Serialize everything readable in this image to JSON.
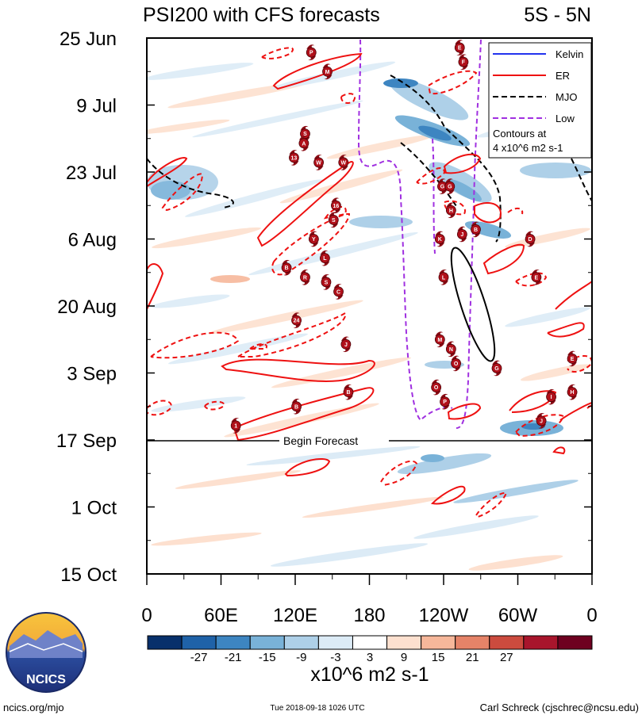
{
  "chart_data": {
    "type": "heatmap",
    "title": "PSI200 with CFS forecasts",
    "region": "5S - 5N",
    "xaxis": {
      "ticks": [
        {
          "lon": 0,
          "label": "0"
        },
        {
          "lon": 60,
          "label": "60E"
        },
        {
          "lon": 120,
          "label": "120E"
        },
        {
          "lon": 180,
          "label": "180"
        },
        {
          "lon": 240,
          "label": "120W"
        },
        {
          "lon": 300,
          "label": "60W"
        },
        {
          "lon": 360,
          "label": "0"
        }
      ],
      "range": [
        0,
        360
      ]
    },
    "yaxis": {
      "ticks": [
        {
          "day": 0,
          "label": "25 Jun"
        },
        {
          "day": 14,
          "label": "9 Jul"
        },
        {
          "day": 28,
          "label": "23 Jul"
        },
        {
          "day": 42,
          "label": "6 Aug"
        },
        {
          "day": 56,
          "label": "20 Aug"
        },
        {
          "day": 70,
          "label": "3 Sep"
        },
        {
          "day": 84,
          "label": "17 Sep"
        },
        {
          "day": 98,
          "label": "1 Oct"
        },
        {
          "day": 112,
          "label": "15 Oct"
        }
      ],
      "range": [
        0,
        112
      ]
    },
    "forecast_line": {
      "day": 84,
      "label": "Begin Forecast"
    },
    "legend": {
      "entries": [
        {
          "label": "Kelvin",
          "color": "#2233ee",
          "dash": "solid"
        },
        {
          "label": "ER",
          "color": "#ee1111",
          "dash": "solid"
        },
        {
          "label": "MJO",
          "color": "#000000",
          "dash": "dash"
        },
        {
          "label": "Low",
          "color": "#a030e0",
          "dash": "dash"
        }
      ],
      "note_line1": "Contours at",
      "note_line2": "4 x10^6 m2 s-1",
      "placement": "top-right"
    },
    "colorbar": {
      "levels": [
        "-27",
        "-21",
        "-15",
        "-9",
        "-3",
        "3",
        "9",
        "15",
        "21",
        "27"
      ],
      "colors": [
        "#08306b",
        "#1f62a8",
        "#3d85c1",
        "#79b2d8",
        "#aed0e8",
        "#dcebf6",
        "#ffffff",
        "#fde0cf",
        "#f6b79a",
        "#e58368",
        "#cc4b3e",
        "#a8152c",
        "#6e0020"
      ],
      "units": "x10^6 m2 s-1"
    },
    "storms": [
      {
        "label": "P",
        "lon": 133,
        "day": 3
      },
      {
        "label": "M",
        "lon": 146,
        "day": 7
      },
      {
        "label": "E",
        "lon": 253,
        "day": 2
      },
      {
        "label": "F",
        "lon": 256,
        "day": 5
      },
      {
        "label": "S",
        "lon": 128,
        "day": 20
      },
      {
        "label": "A",
        "lon": 127,
        "day": 22
      },
      {
        "label": "13",
        "lon": 119,
        "day": 25
      },
      {
        "label": "W",
        "lon": 139,
        "day": 26
      },
      {
        "label": "W",
        "lon": 159,
        "day": 26
      },
      {
        "label": "16",
        "lon": 153,
        "day": 35
      },
      {
        "label": "S",
        "lon": 151,
        "day": 38
      },
      {
        "label": "G",
        "lon": 239,
        "day": 31
      },
      {
        "label": "G",
        "lon": 245,
        "day": 31
      },
      {
        "label": "H",
        "lon": 246,
        "day": 36
      },
      {
        "label": "Y",
        "lon": 135,
        "day": 42
      },
      {
        "label": "K",
        "lon": 237,
        "day": 42
      },
      {
        "label": "J",
        "lon": 255,
        "day": 41
      },
      {
        "label": "B",
        "lon": 266,
        "day": 40
      },
      {
        "label": "D",
        "lon": 310,
        "day": 42
      },
      {
        "label": "L",
        "lon": 144,
        "day": 46
      },
      {
        "label": "B",
        "lon": 113,
        "day": 48
      },
      {
        "label": "R",
        "lon": 128,
        "day": 50
      },
      {
        "label": "S",
        "lon": 145,
        "day": 51
      },
      {
        "label": "C",
        "lon": 155,
        "day": 53
      },
      {
        "label": "L",
        "lon": 240,
        "day": 50
      },
      {
        "label": "E",
        "lon": 315,
        "day": 50
      },
      {
        "label": "24",
        "lon": 121,
        "day": 59
      },
      {
        "label": "J",
        "lon": 161,
        "day": 64
      },
      {
        "label": "M",
        "lon": 237,
        "day": 63
      },
      {
        "label": "N",
        "lon": 246,
        "day": 65
      },
      {
        "label": "O",
        "lon": 250,
        "day": 68
      },
      {
        "label": "G",
        "lon": 283,
        "day": 69
      },
      {
        "label": "E",
        "lon": 344,
        "day": 67
      },
      {
        "label": "B",
        "lon": 163,
        "day": 74
      },
      {
        "label": "O",
        "lon": 234,
        "day": 73
      },
      {
        "label": "P",
        "lon": 241,
        "day": 76
      },
      {
        "label": "I",
        "lon": 327,
        "day": 75
      },
      {
        "label": "H",
        "lon": 344,
        "day": 74
      },
      {
        "label": "B",
        "lon": 121,
        "day": 77
      },
      {
        "label": "1",
        "lon": 72,
        "day": 81
      },
      {
        "label": "J",
        "lon": 319,
        "day": 80
      }
    ],
    "footer_left": "ncics.org/mjo",
    "footer_center": "Tue 2018-09-18 1026 UTC",
    "footer_right": "Carl Schreck (cjschrec@ncsu.edu)",
    "logo_text": "NCICS"
  }
}
